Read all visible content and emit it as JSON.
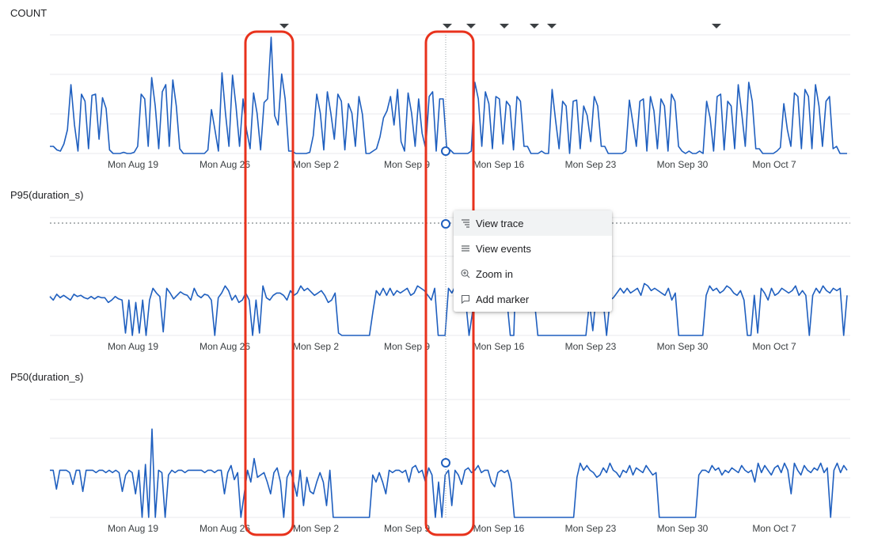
{
  "chart_data": [
    {
      "type": "line",
      "title": "COUNT",
      "x_tick_labels": [
        "Mon Aug 19",
        "Mon Aug 26",
        "Mon Sep 2",
        "Mon Sep 9",
        "Mon Sep 16",
        "Mon Sep 23",
        "Mon Sep 30",
        "Mon Oct 7"
      ],
      "series": [
        {
          "color": "#1f5fbf",
          "values": [
            6,
            6,
            3,
            2,
            8,
            20,
            58,
            24,
            2,
            50,
            44,
            4,
            49,
            50,
            12,
            47,
            38,
            3,
            0,
            0,
            0,
            1,
            0,
            0,
            1,
            6,
            50,
            46,
            6,
            64,
            40,
            4,
            52,
            58,
            6,
            62,
            40,
            4,
            0,
            0,
            0,
            0,
            0,
            0,
            0,
            3,
            37,
            20,
            2,
            68,
            34,
            6,
            66,
            40,
            6,
            46,
            20,
            4,
            51,
            34,
            3,
            43,
            46,
            98,
            32,
            24,
            67,
            46,
            2,
            2,
            0,
            0,
            0,
            0,
            1,
            15,
            50,
            34,
            3,
            52,
            34,
            12,
            50,
            44,
            3,
            42,
            34,
            6,
            48,
            33,
            0,
            0,
            2,
            4,
            14,
            30,
            36,
            48,
            24,
            54,
            10,
            2,
            51,
            34,
            6,
            46,
            17,
            4,
            48,
            52,
            2,
            46,
            46,
            4,
            3,
            0,
            0,
            0,
            0,
            0,
            2,
            60,
            46,
            6,
            52,
            42,
            4,
            48,
            46,
            8,
            44,
            40,
            3,
            48,
            44,
            6,
            6,
            0,
            0,
            0,
            2,
            0,
            0,
            54,
            28,
            4,
            44,
            40,
            0,
            44,
            45,
            4,
            40,
            32,
            10,
            48,
            40,
            6,
            6,
            0,
            0,
            0,
            0,
            0,
            2,
            45,
            26,
            6,
            44,
            46,
            2,
            48,
            36,
            4,
            46,
            40,
            2,
            50,
            44,
            6,
            2,
            0,
            2,
            0,
            0,
            2,
            0,
            44,
            30,
            2,
            48,
            50,
            3,
            44,
            40,
            4,
            58,
            34,
            6,
            60,
            44,
            4,
            4,
            0,
            0,
            0,
            0,
            2,
            5,
            42,
            20,
            6,
            51,
            48,
            4,
            54,
            48,
            4,
            58,
            40,
            6,
            44,
            48,
            4,
            6,
            0,
            0,
            0
          ]
        }
      ]
    },
    {
      "type": "line",
      "title": "P95(duration_s)",
      "x_tick_labels": [
        "Mon Aug 19",
        "Mon Aug 26",
        "Mon Sep 2",
        "Mon Sep 9",
        "Mon Sep 16",
        "Mon Sep 23",
        "Mon Sep 30",
        "Mon Oct 7"
      ],
      "series": [
        {
          "color": "#1f5fbf",
          "values": [
            33,
            30,
            35,
            32,
            34,
            32,
            30,
            35,
            33,
            34,
            32,
            31,
            33,
            31,
            33,
            32,
            32,
            28,
            30,
            33,
            31,
            30,
            2,
            30,
            0,
            28,
            2,
            30,
            0,
            30,
            40,
            36,
            33,
            3,
            40,
            36,
            31,
            34,
            37,
            35,
            34,
            30,
            40,
            34,
            32,
            35,
            34,
            30,
            0,
            32,
            36,
            42,
            38,
            30,
            34,
            28,
            30,
            36,
            30,
            0,
            30,
            2,
            42,
            32,
            30,
            34,
            36,
            36,
            34,
            30,
            38,
            34,
            36,
            42,
            38,
            40,
            37,
            34,
            36,
            38,
            34,
            28,
            30,
            36,
            2,
            0,
            0,
            0,
            0,
            0,
            0,
            0,
            0,
            0,
            20,
            38,
            34,
            40,
            34,
            40,
            34,
            38,
            36,
            38,
            40,
            34,
            36,
            42,
            40,
            38,
            34,
            30,
            40,
            0,
            0,
            0,
            40,
            36,
            42,
            34,
            36,
            30,
            0,
            20,
            42,
            38,
            34,
            40,
            36,
            42,
            36,
            40,
            44,
            30,
            0,
            0,
            90,
            40,
            30,
            36,
            32,
            30,
            0,
            0,
            0,
            0,
            0,
            0,
            0,
            0,
            0,
            0,
            0,
            0,
            0,
            0,
            0,
            28,
            4,
            34,
            36,
            30,
            0,
            30,
            32,
            36,
            40,
            36,
            40,
            36,
            38,
            40,
            34,
            44,
            42,
            38,
            40,
            38,
            36,
            34,
            40,
            30,
            36,
            0,
            0,
            0,
            0,
            0,
            0,
            0,
            0,
            34,
            42,
            38,
            40,
            36,
            38,
            42,
            40,
            36,
            34,
            38,
            30,
            0,
            0,
            34,
            2,
            40,
            36,
            30,
            40,
            34,
            36,
            40,
            38,
            36,
            38,
            42,
            34,
            38,
            34,
            0,
            34,
            40,
            36,
            42,
            38,
            36,
            40,
            38,
            40,
            0,
            34
          ]
        }
      ]
    },
    {
      "type": "line",
      "title": "P50(duration_s)",
      "x_tick_labels": [
        "Mon Aug 19",
        "Mon Aug 26",
        "Mon Sep 2",
        "Mon Sep 9",
        "Mon Sep 16",
        "Mon Sep 23",
        "Mon Sep 30",
        "Mon Oct 7"
      ],
      "series": [
        {
          "color": "#1f5fbf",
          "values": [
            40,
            40,
            24,
            40,
            40,
            40,
            38,
            28,
            40,
            40,
            22,
            40,
            40,
            40,
            38,
            40,
            40,
            38,
            40,
            38,
            40,
            38,
            22,
            36,
            40,
            38,
            20,
            40,
            0,
            45,
            0,
            75,
            0,
            40,
            38,
            0,
            36,
            40,
            38,
            40,
            40,
            38,
            40,
            40,
            40,
            40,
            40,
            38,
            40,
            40,
            38,
            40,
            40,
            20,
            38,
            44,
            32,
            38,
            0,
            20,
            40,
            30,
            50,
            34,
            36,
            38,
            30,
            20,
            38,
            42,
            30,
            0,
            34,
            40,
            30,
            18,
            40,
            10,
            34,
            22,
            20,
            30,
            38,
            30,
            10,
            40,
            0,
            0,
            0,
            0,
            0,
            0,
            0,
            0,
            0,
            0,
            0,
            0,
            36,
            30,
            38,
            30,
            20,
            40,
            38,
            40,
            40,
            38,
            40,
            30,
            42,
            44,
            38,
            40,
            30,
            42,
            36,
            0,
            30,
            0,
            36,
            40,
            10,
            40,
            36,
            28,
            40,
            42,
            38,
            40,
            44,
            38,
            40,
            40,
            30,
            26,
            38,
            40,
            38,
            40,
            30,
            0,
            0,
            0,
            0,
            0,
            0,
            0,
            0,
            0,
            0,
            0,
            0,
            0,
            0,
            0,
            0,
            0,
            0,
            0,
            34,
            46,
            40,
            44,
            40,
            38,
            34,
            36,
            42,
            38,
            46,
            40,
            38,
            34,
            40,
            38,
            44,
            36,
            42,
            40,
            38,
            44,
            40,
            36,
            38,
            0,
            0,
            0,
            0,
            0,
            0,
            0,
            0,
            0,
            0,
            0,
            0,
            36,
            40,
            40,
            38,
            44,
            40,
            42,
            36,
            40,
            38,
            42,
            40,
            38,
            44,
            40,
            38,
            40,
            30,
            46,
            38,
            44,
            40,
            36,
            42,
            44,
            38,
            46,
            40,
            20,
            46,
            40,
            36,
            44,
            40,
            38,
            42,
            40,
            46,
            38,
            42,
            0,
            40,
            46,
            38,
            44,
            40
          ]
        }
      ]
    }
  ],
  "marker_count": 7,
  "colors": {
    "line": "#1f5fbf",
    "highlight": "#e8321c",
    "grid": "#e8eaed",
    "menu_bg": "#ffffff"
  },
  "context_menu": {
    "items": [
      {
        "icon": "trace-icon",
        "label": "View trace"
      },
      {
        "icon": "list-icon",
        "label": "View events"
      },
      {
        "icon": "zoom-in-icon",
        "label": "Zoom in"
      },
      {
        "icon": "marker-icon",
        "label": "Add marker"
      }
    ]
  }
}
